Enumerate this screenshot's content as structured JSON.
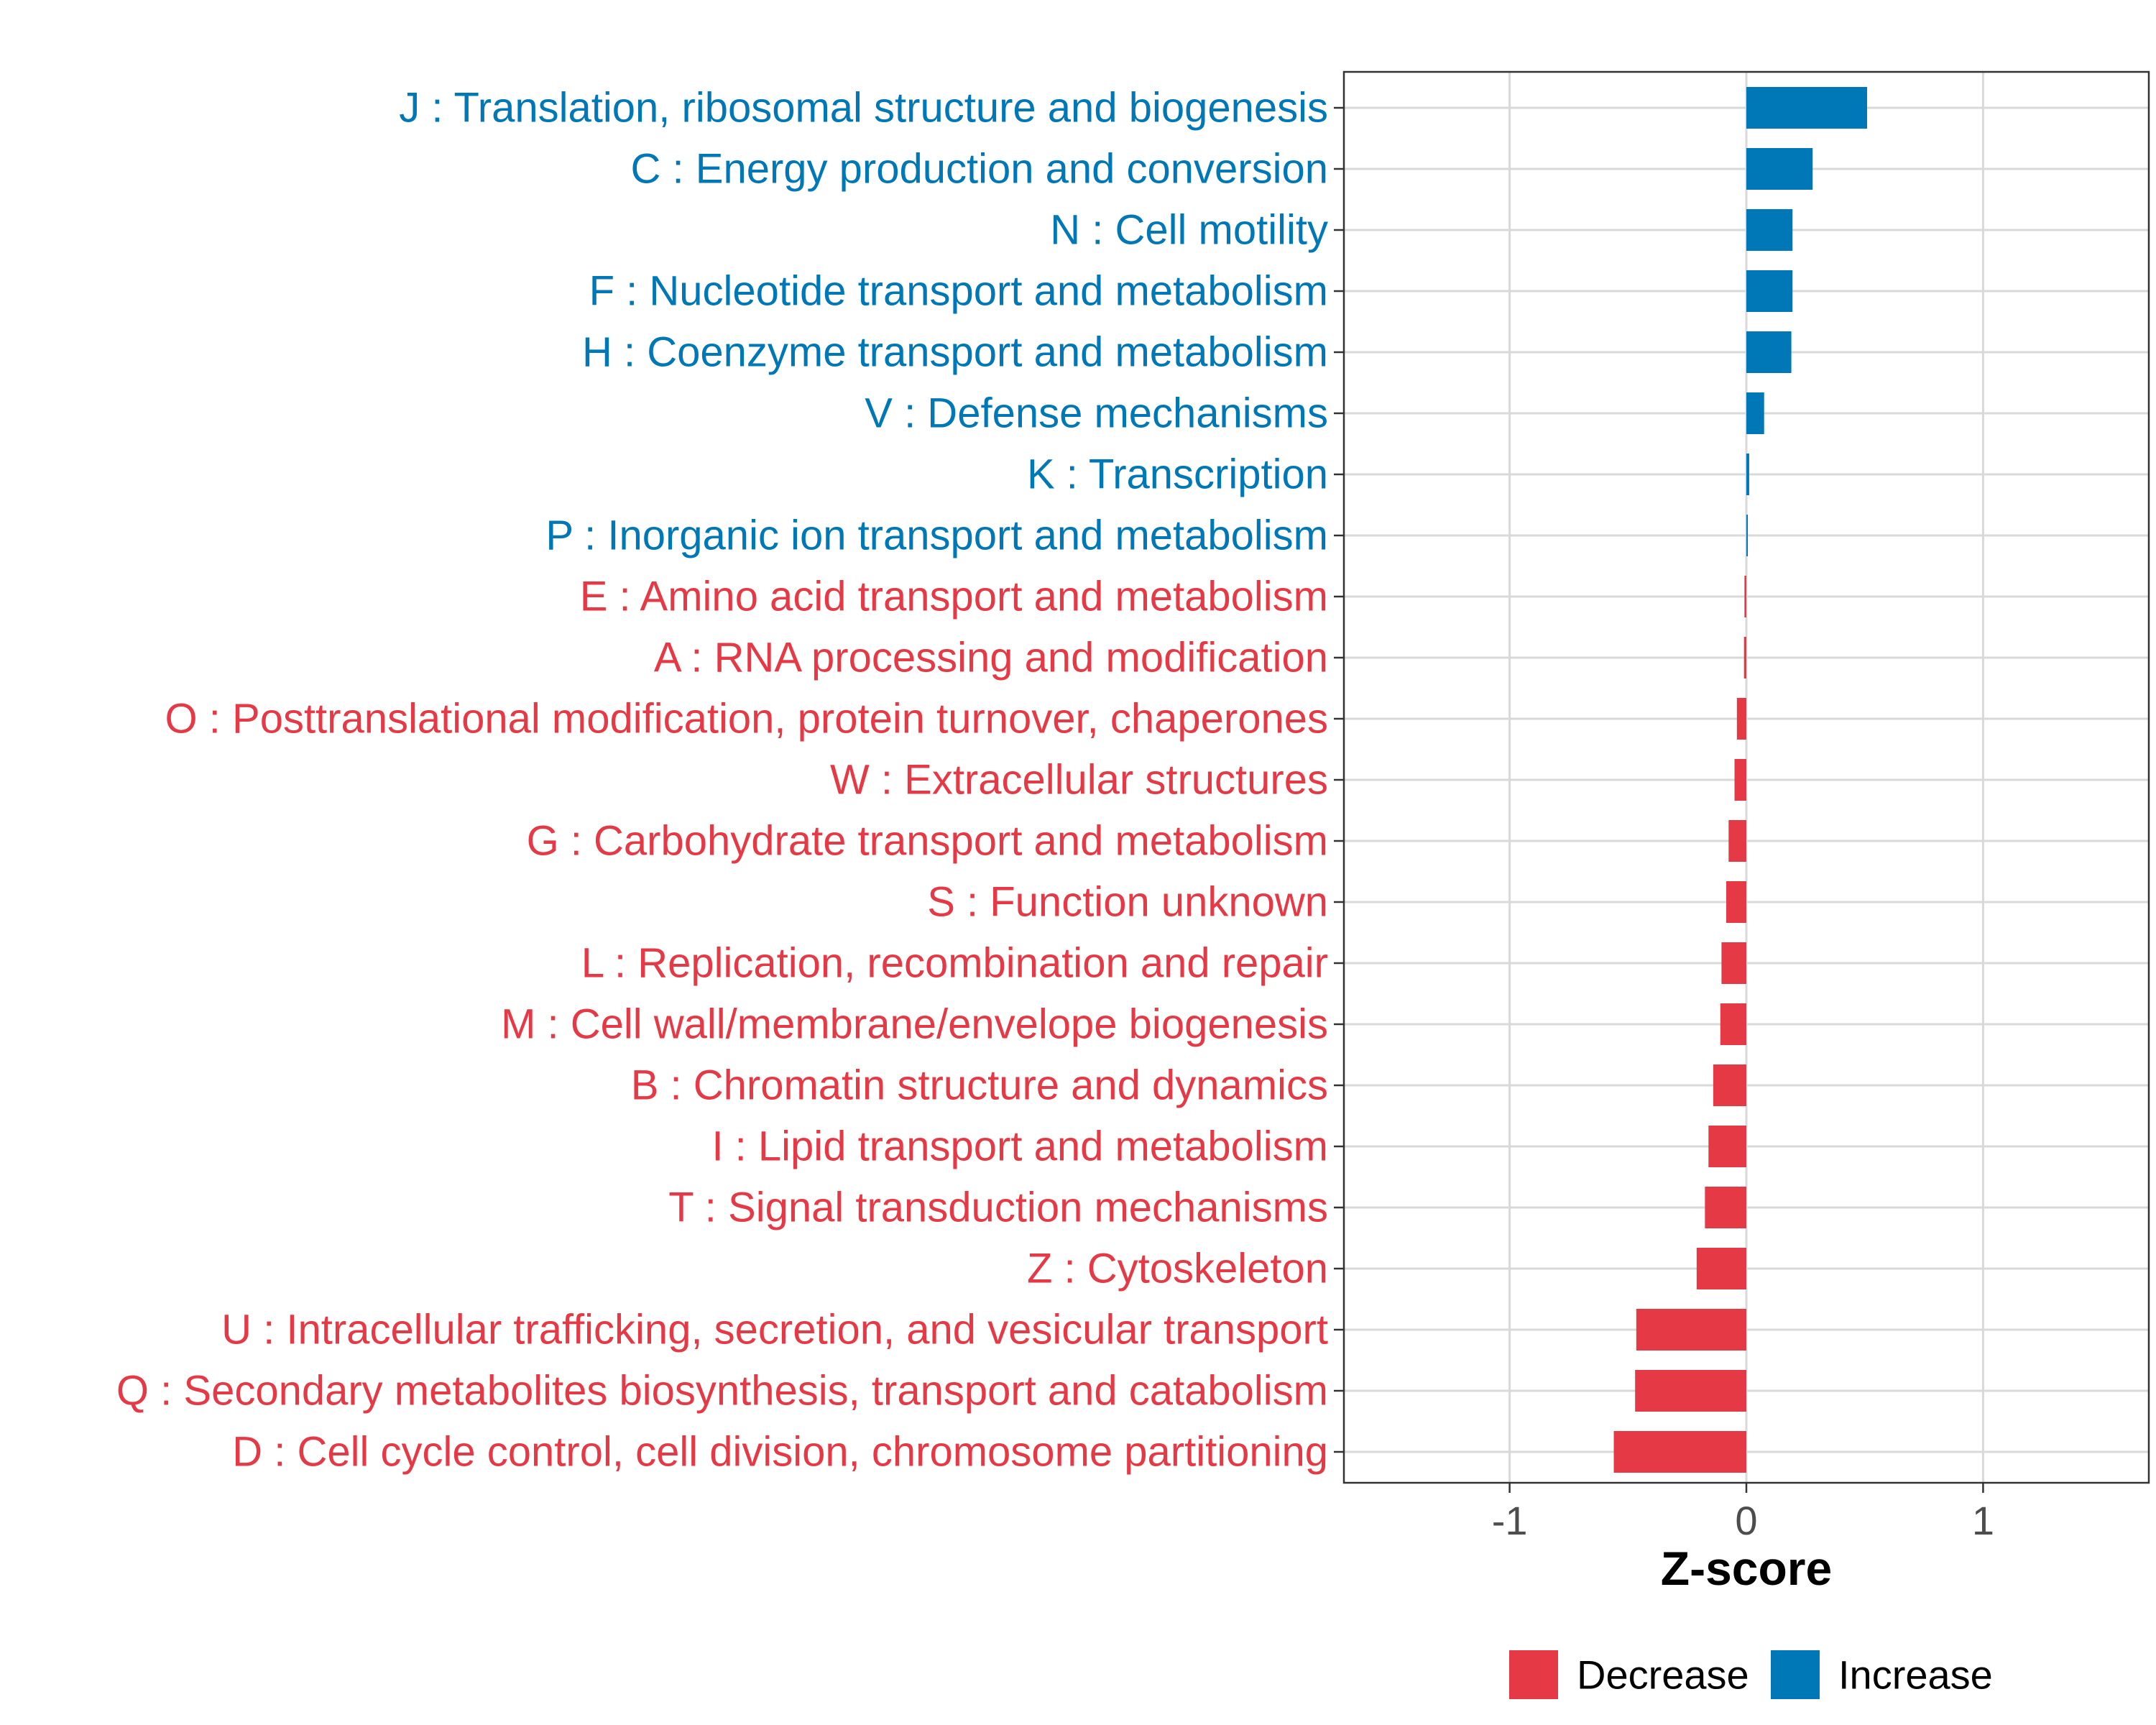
{
  "chart_data": {
    "type": "bar",
    "orientation": "horizontal",
    "title": "",
    "xlabel": "Z-score",
    "ylabel": "",
    "xlim": [
      -1.7,
      1.7
    ],
    "xticks": [
      -1,
      0,
      1
    ],
    "xtick_labels": [
      "-1",
      "0",
      "1"
    ],
    "grid": true,
    "legend_position": "bottom",
    "colors": {
      "Decrease": "#e63946",
      "Increase": "#0077b6"
    },
    "legend": [
      {
        "label": "Decrease",
        "key": "Decrease"
      },
      {
        "label": "Increase",
        "key": "Increase"
      }
    ],
    "categories": [
      "J : Translation, ribosomal structure and biogenesis",
      "C : Energy production and conversion",
      "N : Cell motility",
      "F : Nucleotide transport and metabolism",
      "H : Coenzyme transport and metabolism",
      "V : Defense mechanisms",
      "K : Transcription",
      "P : Inorganic ion transport and metabolism",
      "E : Amino acid transport and metabolism",
      "A : RNA processing and modification",
      "O : Posttranslational modification, protein turnover, chaperones",
      "W : Extracellular structures",
      "G : Carbohydrate transport and metabolism",
      "S : Function unknown",
      "L : Replication, recombination and repair",
      "M : Cell wall/membrane/envelope biogenesis",
      "B : Chromatin structure and dynamics",
      "I : Lipid transport and metabolism",
      "T : Signal transduction mechanisms",
      "Z : Cytoskeleton",
      "U : Intracellular trafficking, secretion, and vesicular transport",
      "Q : Secondary metabolites biosynthesis, transport and catabolism",
      "D : Cell cycle control, cell division, chromosome partitioning"
    ],
    "values": [
      0.51,
      0.28,
      0.195,
      0.195,
      0.19,
      0.075,
      0.012,
      0.004,
      -0.008,
      -0.01,
      -0.04,
      -0.05,
      -0.075,
      -0.085,
      -0.105,
      -0.11,
      -0.14,
      -0.16,
      -0.175,
      -0.21,
      -0.465,
      -0.47,
      -0.56
    ],
    "groups": [
      "Increase",
      "Increase",
      "Increase",
      "Increase",
      "Increase",
      "Increase",
      "Increase",
      "Increase",
      "Decrease",
      "Decrease",
      "Decrease",
      "Decrease",
      "Decrease",
      "Decrease",
      "Decrease",
      "Decrease",
      "Decrease",
      "Decrease",
      "Decrease",
      "Decrease",
      "Decrease",
      "Decrease",
      "Decrease"
    ]
  }
}
